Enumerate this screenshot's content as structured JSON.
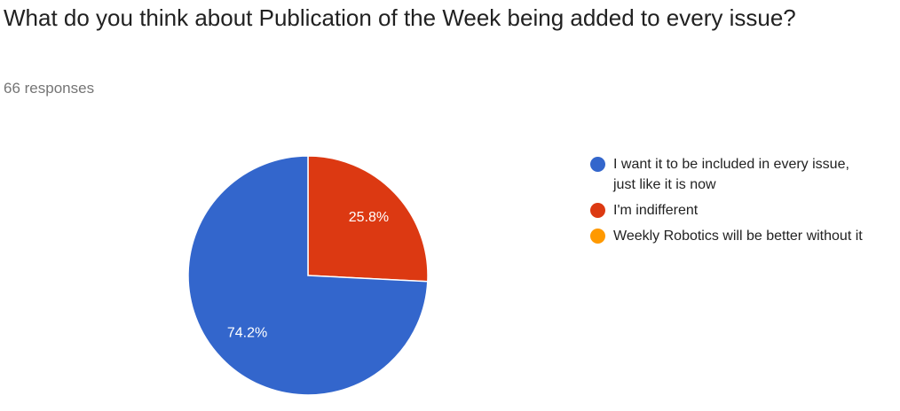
{
  "chart_data": {
    "type": "pie",
    "title": "What do you think about Publication of the Week being added to every issue?",
    "subtitle": "66 responses",
    "categories": [
      "I want it to be included in every issue, just like it is now",
      "I'm indifferent",
      "Weekly Robotics will be better without it"
    ],
    "values": [
      74.2,
      25.8,
      0
    ],
    "value_labels": [
      "74.2%",
      "25.8%",
      null
    ],
    "colors": [
      "#3366cc",
      "#dc3912",
      "#ff9900"
    ],
    "legend": "right"
  }
}
